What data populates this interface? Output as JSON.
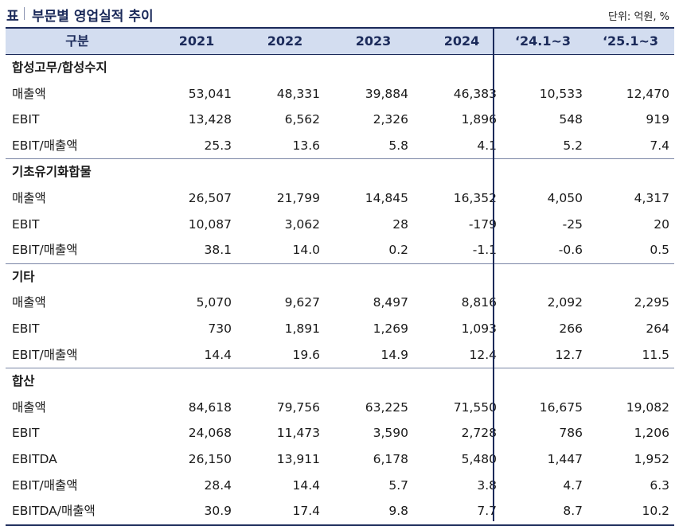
{
  "title": {
    "prefix": "표",
    "text": "부문별 영업실적 추이",
    "unit": "단위: 억원, %"
  },
  "header": {
    "label": "구분",
    "cols": [
      "2021",
      "2022",
      "2023",
      "2024",
      "‘24.1~3",
      "‘25.1~3"
    ]
  },
  "sections": [
    {
      "name": "합성고무/합성수지",
      "rows": [
        {
          "label": "매출액",
          "values": [
            "53,041",
            "48,331",
            "39,884",
            "46,383",
            "10,533",
            "12,470"
          ]
        },
        {
          "label": "EBIT",
          "values": [
            "13,428",
            "6,562",
            "2,326",
            "1,896",
            "548",
            "919"
          ]
        },
        {
          "label": "EBIT/매출액",
          "values": [
            "25.3",
            "13.6",
            "5.8",
            "4.1",
            "5.2",
            "7.4"
          ]
        }
      ]
    },
    {
      "name": "기초유기화합물",
      "rows": [
        {
          "label": "매출액",
          "values": [
            "26,507",
            "21,799",
            "14,845",
            "16,352",
            "4,050",
            "4,317"
          ]
        },
        {
          "label": "EBIT",
          "values": [
            "10,087",
            "3,062",
            "28",
            "-179",
            "-25",
            "20"
          ]
        },
        {
          "label": "EBIT/매출액",
          "values": [
            "38.1",
            "14.0",
            "0.2",
            "-1.1",
            "-0.6",
            "0.5"
          ]
        }
      ]
    },
    {
      "name": "기타",
      "rows": [
        {
          "label": "매출액",
          "values": [
            "5,070",
            "9,627",
            "8,497",
            "8,816",
            "2,092",
            "2,295"
          ]
        },
        {
          "label": "EBIT",
          "values": [
            "730",
            "1,891",
            "1,269",
            "1,093",
            "266",
            "264"
          ]
        },
        {
          "label": "EBIT/매출액",
          "values": [
            "14.4",
            "19.6",
            "14.9",
            "12.4",
            "12.7",
            "11.5"
          ]
        }
      ]
    },
    {
      "name": "합산",
      "rows": [
        {
          "label": "매출액",
          "values": [
            "84,618",
            "79,756",
            "63,225",
            "71,550",
            "16,675",
            "19,082"
          ]
        },
        {
          "label": "EBIT",
          "values": [
            "24,068",
            "11,473",
            "3,590",
            "2,728",
            "786",
            "1,206"
          ]
        },
        {
          "label": "EBITDA",
          "values": [
            "26,150",
            "13,911",
            "6,178",
            "5,480",
            "1,447",
            "1,952"
          ]
        },
        {
          "label": "EBIT/매출액",
          "values": [
            "28.4",
            "14.4",
            "5.7",
            "3.8",
            "4.7",
            "6.3"
          ]
        },
        {
          "label": "EBITDA/매출액",
          "values": [
            "30.9",
            "17.4",
            "9.8",
            "7.7",
            "8.7",
            "10.2"
          ]
        }
      ]
    }
  ]
}
